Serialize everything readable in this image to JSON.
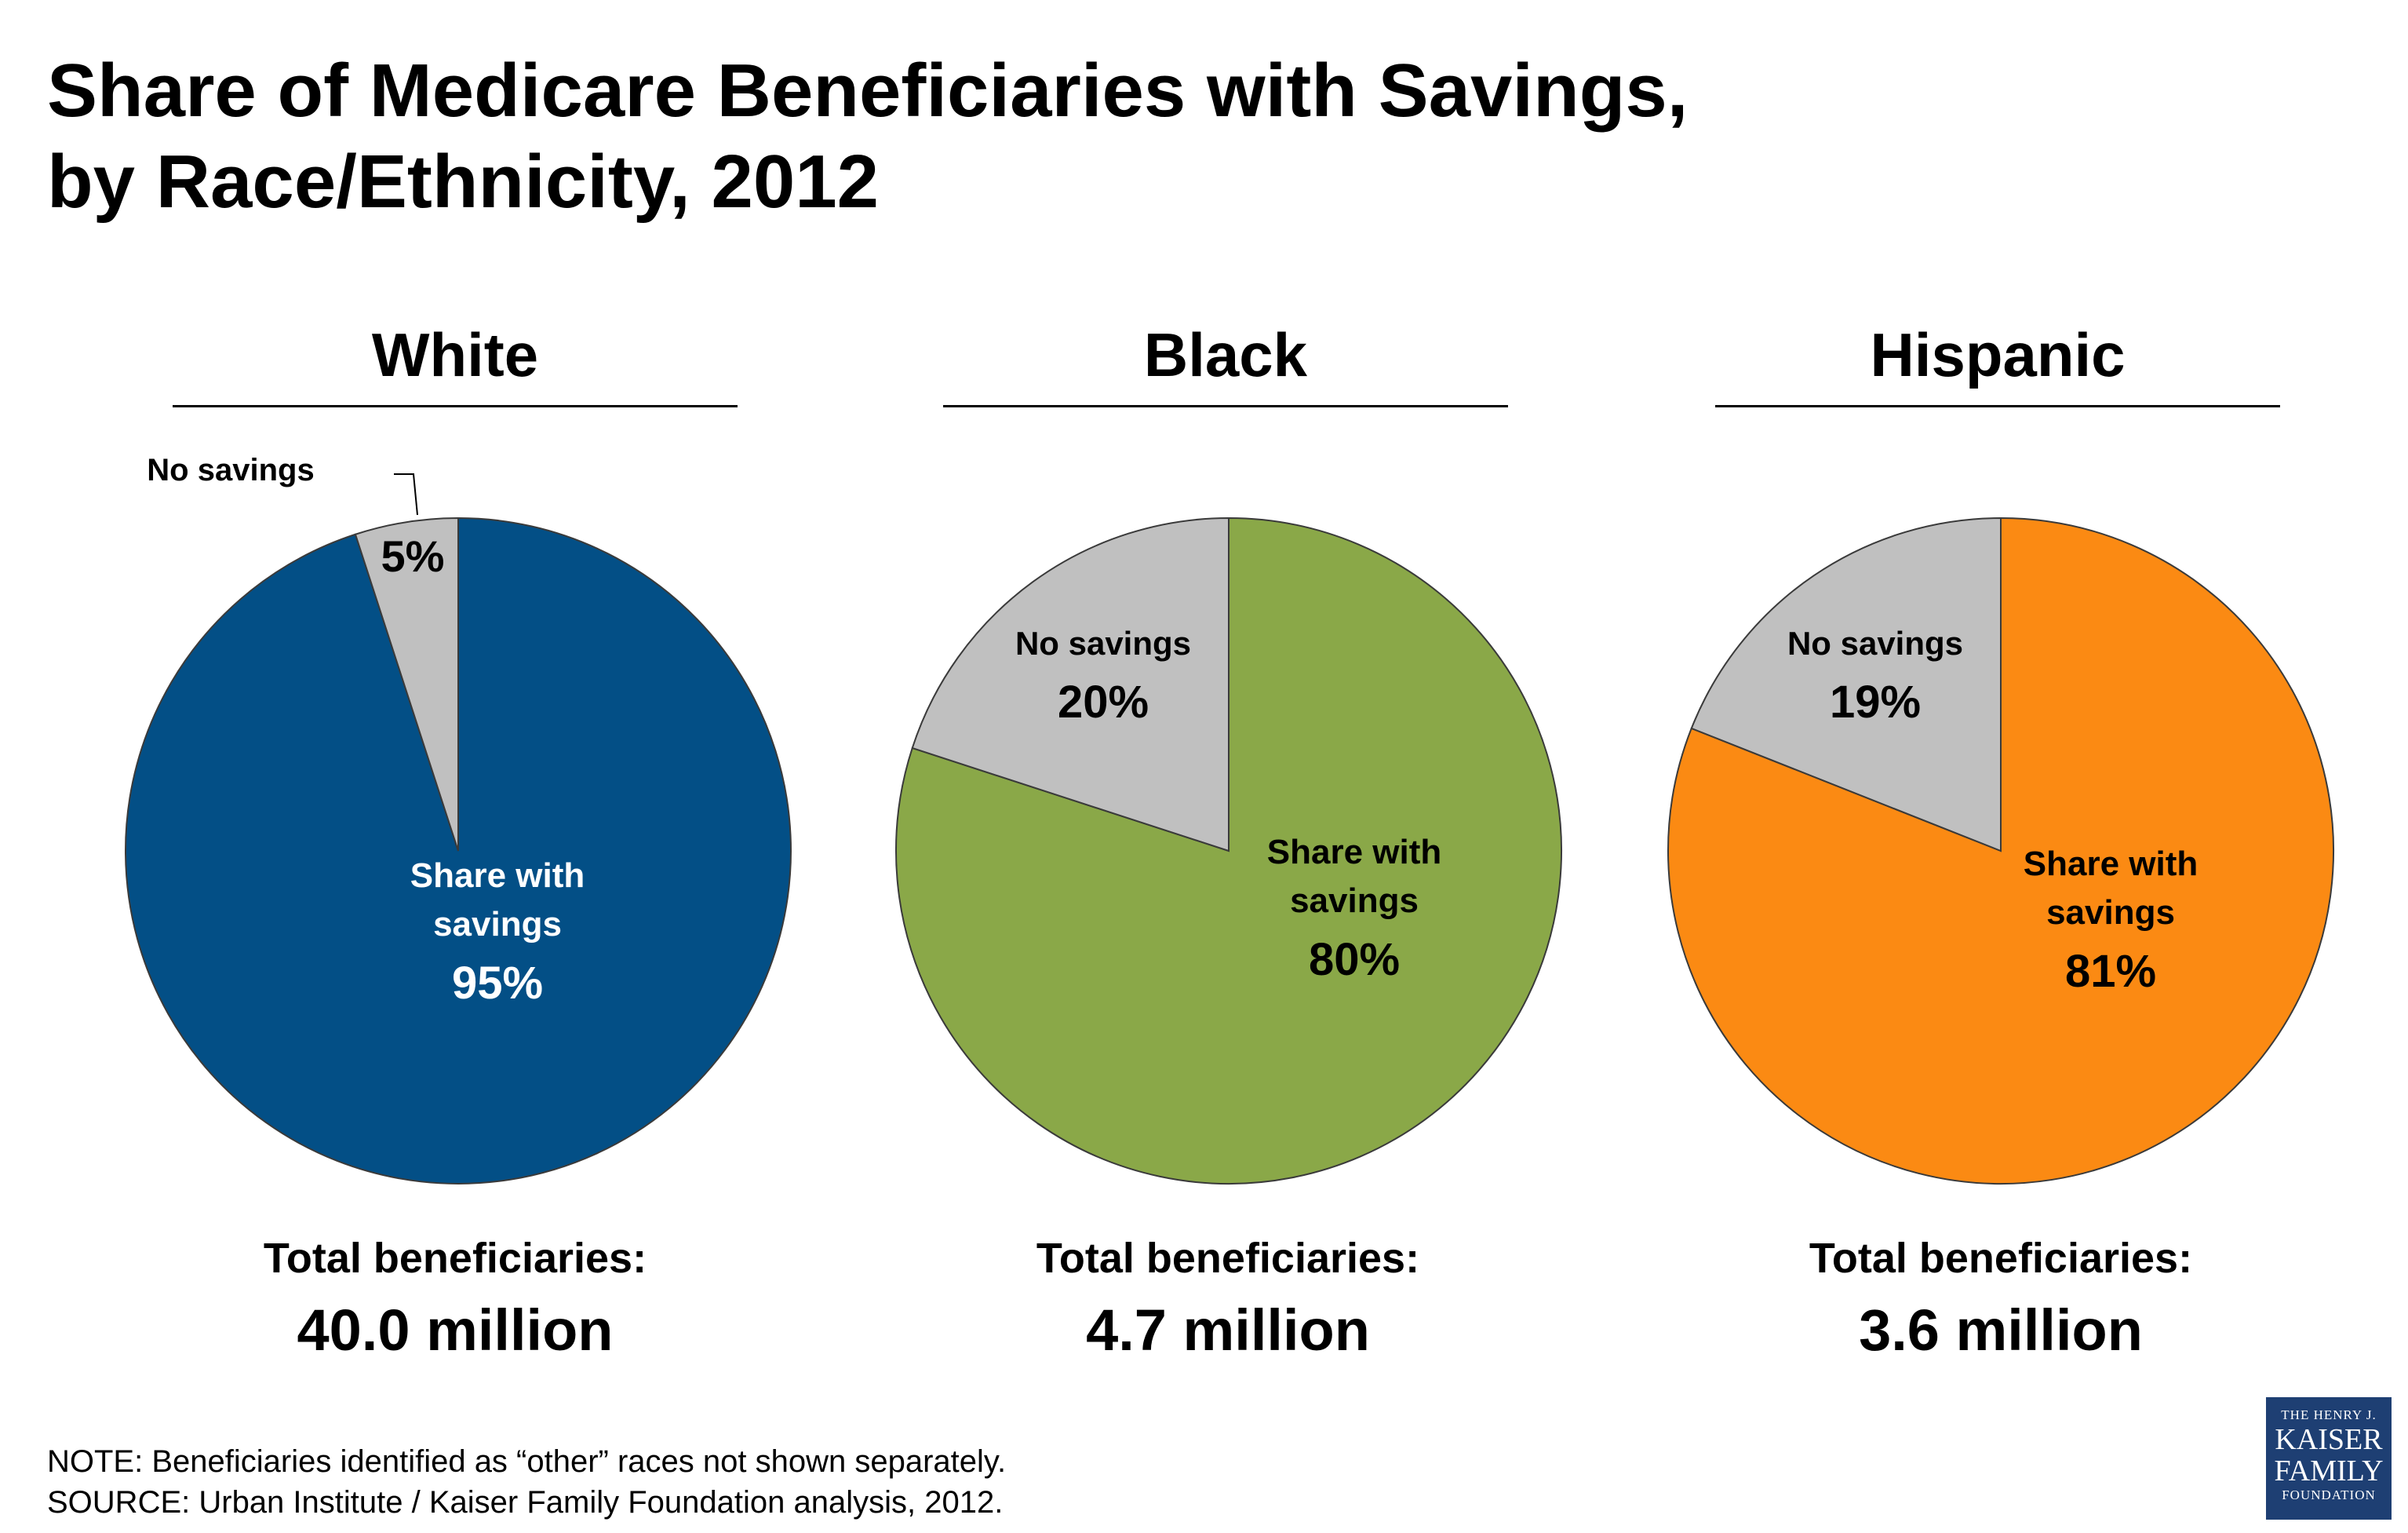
{
  "title_lines": [
    "Share of Medicare Beneficiaries with Savings,",
    "by Race/Ethnicity, 2012"
  ],
  "chart_data": [
    {
      "type": "pie",
      "title": "White",
      "categories": [
        "Share with savings",
        "No savings"
      ],
      "values": [
        95,
        5
      ],
      "data_labels": [
        "95%",
        "5%"
      ],
      "colors": [
        "#034f86",
        "#c0c0c0"
      ],
      "total_label": "Total beneficiaries:",
      "total_value": "40.0 million"
    },
    {
      "type": "pie",
      "title": "Black",
      "categories": [
        "Share with savings",
        "No savings"
      ],
      "values": [
        80,
        20
      ],
      "data_labels": [
        "80%",
        "20%"
      ],
      "colors": [
        "#8aa848",
        "#c0c0c0"
      ],
      "total_label": "Total beneficiaries:",
      "total_value": "4.7 million"
    },
    {
      "type": "pie",
      "title": "Hispanic",
      "categories": [
        "Share with savings",
        "No savings"
      ],
      "values": [
        81,
        19
      ],
      "data_labels": [
        "81%",
        "19%"
      ],
      "colors": [
        "#fb8a13",
        "#c0c0c0"
      ],
      "total_label": "Total beneficiaries:",
      "total_value": "3.6 million"
    }
  ],
  "footnotes": {
    "note": "NOTE: Beneficiaries identified as “other” races not shown separately.",
    "source": "SOURCE: Urban Institute / Kaiser Family Foundation analysis, 2012."
  },
  "logo": {
    "line1": "THE HENRY J.",
    "line2": "KAISER",
    "line3": "FAMILY",
    "line4": "FOUNDATION"
  }
}
